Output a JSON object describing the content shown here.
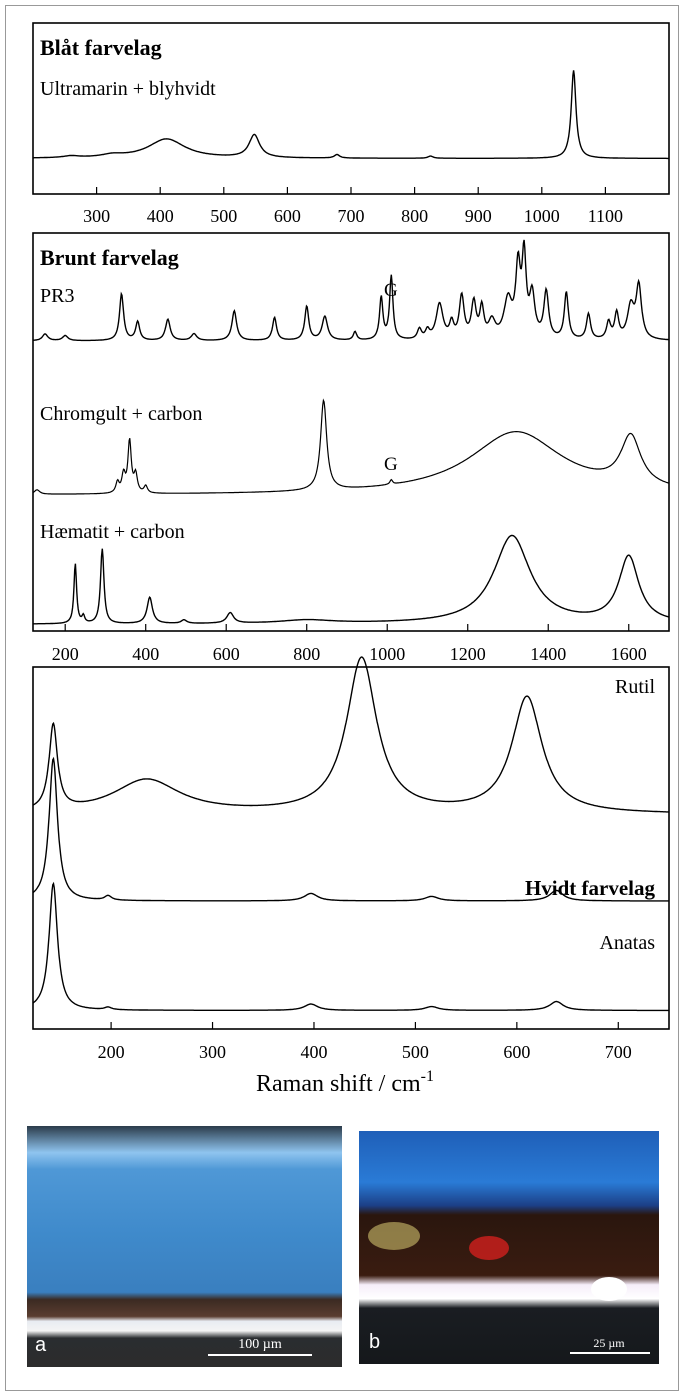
{
  "chart_data": [
    {
      "type": "line",
      "title": "Blåt farvelag",
      "xlim": [
        200,
        1200
      ],
      "xticks": [
        300,
        400,
        500,
        600,
        700,
        800,
        900,
        1000,
        1100
      ],
      "grid": false,
      "series": [
        {
          "name": "Ultramarin + blyhvidt",
          "baseline": 0.04,
          "peaks": [
            [
              260,
              0.02,
              15
            ],
            [
              325,
              0.03,
              20
            ],
            [
              410,
              0.22,
              35
            ],
            [
              548,
              0.26,
              10
            ],
            [
              678,
              0.04,
              5
            ],
            [
              825,
              0.025,
              5
            ],
            [
              1050,
              1.0,
              4.5
            ]
          ]
        }
      ]
    },
    {
      "type": "line",
      "title": "Brunt farvelag",
      "xlim": [
        120,
        1700
      ],
      "xticks": [
        200,
        400,
        600,
        800,
        1000,
        1200,
        1400,
        1600
      ],
      "grid": false,
      "series": [
        {
          "name": "PR3",
          "baseline": 0.06,
          "peaks": [
            [
              150,
              0.08,
              8
            ],
            [
              200,
              0.06,
              8
            ],
            [
              340,
              0.55,
              6
            ],
            [
              380,
              0.22,
              6
            ],
            [
              455,
              0.25,
              7
            ],
            [
              520,
              0.08,
              8
            ],
            [
              620,
              0.35,
              7
            ],
            [
              720,
              0.27,
              6
            ],
            [
              800,
              0.4,
              6
            ],
            [
              845,
              0.28,
              8
            ],
            [
              920,
              0.1,
              5
            ],
            [
              985,
              0.5,
              5
            ],
            [
              1010,
              0.75,
              5
            ],
            [
              1080,
              0.12,
              6
            ],
            [
              1100,
              0.1,
              6
            ],
            [
              1130,
              0.42,
              10
            ],
            [
              1160,
              0.18,
              6
            ],
            [
              1185,
              0.5,
              7
            ],
            [
              1215,
              0.42,
              7
            ],
            [
              1235,
              0.35,
              6
            ],
            [
              1260,
              0.2,
              10
            ],
            [
              1300,
              0.45,
              12
            ],
            [
              1325,
              0.8,
              7
            ],
            [
              1340,
              0.92,
              6
            ],
            [
              1360,
              0.5,
              8
            ],
            [
              1395,
              0.55,
              7
            ],
            [
              1445,
              0.55,
              6
            ],
            [
              1500,
              0.3,
              6
            ],
            [
              1550,
              0.2,
              6
            ],
            [
              1570,
              0.3,
              6
            ],
            [
              1605,
              0.38,
              10
            ],
            [
              1625,
              0.62,
              8
            ]
          ]
        },
        {
          "name": "Chromgult + carbon",
          "baseline": 0.02,
          "peaks": [
            [
              130,
              0.05,
              8
            ],
            [
              330,
              0.12,
              5
            ],
            [
              345,
              0.2,
              5
            ],
            [
              360,
              0.58,
              5
            ],
            [
              375,
              0.2,
              5
            ],
            [
              400,
              0.08,
              5
            ],
            [
              842,
              1.0,
              9
            ],
            [
              1010,
              0.05,
              4
            ],
            [
              1320,
              0.7,
              140
            ],
            [
              1605,
              0.55,
              30
            ]
          ]
        },
        {
          "name": "Hæmatit + carbon",
          "baseline": 0.02,
          "peaks": [
            [
              225,
              0.68,
              4
            ],
            [
              245,
              0.08,
              4
            ],
            [
              292,
              0.85,
              5
            ],
            [
              410,
              0.3,
              8
            ],
            [
              495,
              0.04,
              8
            ],
            [
              610,
              0.12,
              10
            ],
            [
              800,
              0.04,
              80
            ],
            [
              1310,
              1.0,
              55
            ],
            [
              1600,
              0.75,
              30
            ]
          ]
        }
      ],
      "annotations": [
        {
          "text": "G",
          "series": "PR3",
          "x": 1010
        },
        {
          "text": "G",
          "series": "Chromgult + carbon",
          "x": 1010
        }
      ]
    },
    {
      "type": "line",
      "title": "Hvidt farvelag",
      "xlabel": "Raman shift / cm",
      "xlabel_superscript": "-1",
      "xlim": [
        123,
        750
      ],
      "xticks": [
        200,
        300,
        400,
        500,
        600,
        700
      ],
      "grid": false,
      "series": [
        {
          "name": "Rutil",
          "baseline": 0.08,
          "peaks": [
            [
              143,
              0.55,
              5
            ],
            [
              235,
              0.22,
              40
            ],
            [
              447,
              1.0,
              18
            ],
            [
              610,
              0.75,
              18
            ]
          ]
        },
        {
          "name": "Hvidt farvelag",
          "baseline": 0.02,
          "peaks": [
            [
              143,
              0.95,
              5
            ],
            [
              197,
              0.03,
              4
            ],
            [
              397,
              0.05,
              8
            ],
            [
              516,
              0.03,
              8
            ],
            [
              639,
              0.07,
              8
            ]
          ]
        },
        {
          "name": "Anatas",
          "baseline": 0.02,
          "peaks": [
            [
              143,
              1.0,
              5
            ],
            [
              197,
              0.02,
              4
            ],
            [
              397,
              0.05,
              8
            ],
            [
              516,
              0.03,
              8
            ],
            [
              639,
              0.07,
              8
            ]
          ]
        }
      ]
    }
  ],
  "photos": [
    {
      "label": "a",
      "scale_label": "100 µm"
    },
    {
      "label": "b",
      "scale_label": "25 µm"
    }
  ]
}
